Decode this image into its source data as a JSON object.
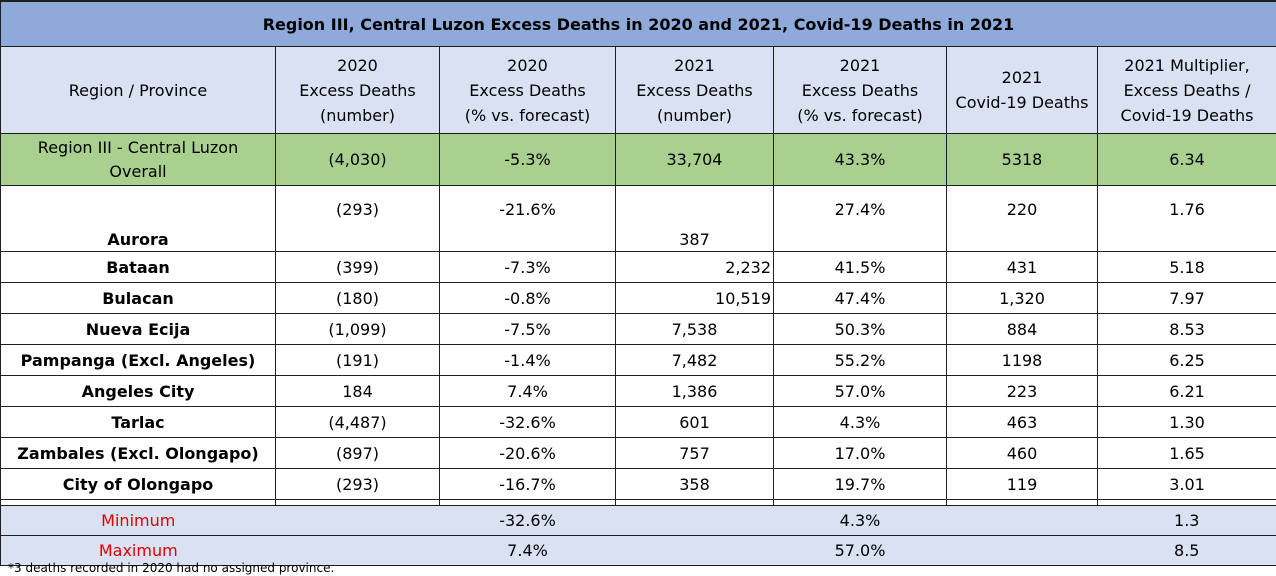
{
  "title": "Region III, Central Luzon Excess Deaths in 2020 and 2021, Covid-19 Deaths in 2021",
  "columns": [
    [
      "Region / Province"
    ],
    [
      "2020",
      "Excess Deaths",
      "(number)"
    ],
    [
      "2020",
      "Excess Deaths",
      "(% vs. forecast)"
    ],
    [
      "2021",
      "Excess Deaths",
      "(number)"
    ],
    [
      "2021",
      "Excess Deaths",
      "(% vs. forecast)"
    ],
    [
      "2021",
      "Covid-19 Deaths"
    ],
    [
      "2021 Multiplier,",
      "Excess Deaths /",
      "Covid-19 Deaths"
    ]
  ],
  "overall": {
    "name_line1": "Region III - Central Luzon",
    "name_line2": "Overall",
    "values": [
      "(4,030)",
      "-5.3%",
      "33,704",
      "43.3%",
      "5318",
      "6.34"
    ]
  },
  "rows": [
    {
      "name": "Aurora",
      "values": [
        "(293)",
        "-21.6%",
        "387",
        "27.4%",
        "220",
        "1.76"
      ]
    },
    {
      "name": "Bataan",
      "values": [
        "(399)",
        "-7.3%",
        "2,232",
        "41.5%",
        "431",
        "5.18"
      ]
    },
    {
      "name": "Bulacan",
      "values": [
        "(180)",
        "-0.8%",
        "10,519",
        "47.4%",
        "1,320",
        "7.97"
      ]
    },
    {
      "name": "Nueva Ecija",
      "values": [
        "(1,099)",
        "-7.5%",
        "7,538",
        "50.3%",
        "884",
        "8.53"
      ]
    },
    {
      "name": "Pampanga (Excl. Angeles)",
      "values": [
        "(191)",
        "-1.4%",
        "7,482",
        "55.2%",
        "1198",
        "6.25"
      ]
    },
    {
      "name": "Angeles City",
      "values": [
        "184",
        "7.4%",
        "1,386",
        "57.0%",
        "223",
        "6.21"
      ]
    },
    {
      "name": "Tarlac",
      "values": [
        "(4,487)",
        "-32.6%",
        "601",
        "4.3%",
        "463",
        "1.30"
      ]
    },
    {
      "name": "Zambales (Excl. Olongapo)",
      "values": [
        "(897)",
        "-20.6%",
        "757",
        "17.0%",
        "460",
        "1.65"
      ]
    },
    {
      "name": "City of Olongapo",
      "values": [
        "(293)",
        "-16.7%",
        "358",
        "19.7%",
        "119",
        "3.01"
      ]
    }
  ],
  "minimum": {
    "label": "Minimum",
    "pct2020": "-32.6%",
    "pct2021": "4.3%",
    "multiplier": "1.3"
  },
  "maximum": {
    "label": "Maximum",
    "pct2020": "7.4%",
    "pct2021": "57.0%",
    "multiplier": "8.5"
  },
  "footnote": "*3 deaths recorded in 2020 had no assigned province.",
  "colors": {
    "title_bg": "#8eaadb",
    "header_bg": "#d9e1f2",
    "overall_bg": "#a9d08e",
    "stat_label": "#e00000"
  }
}
